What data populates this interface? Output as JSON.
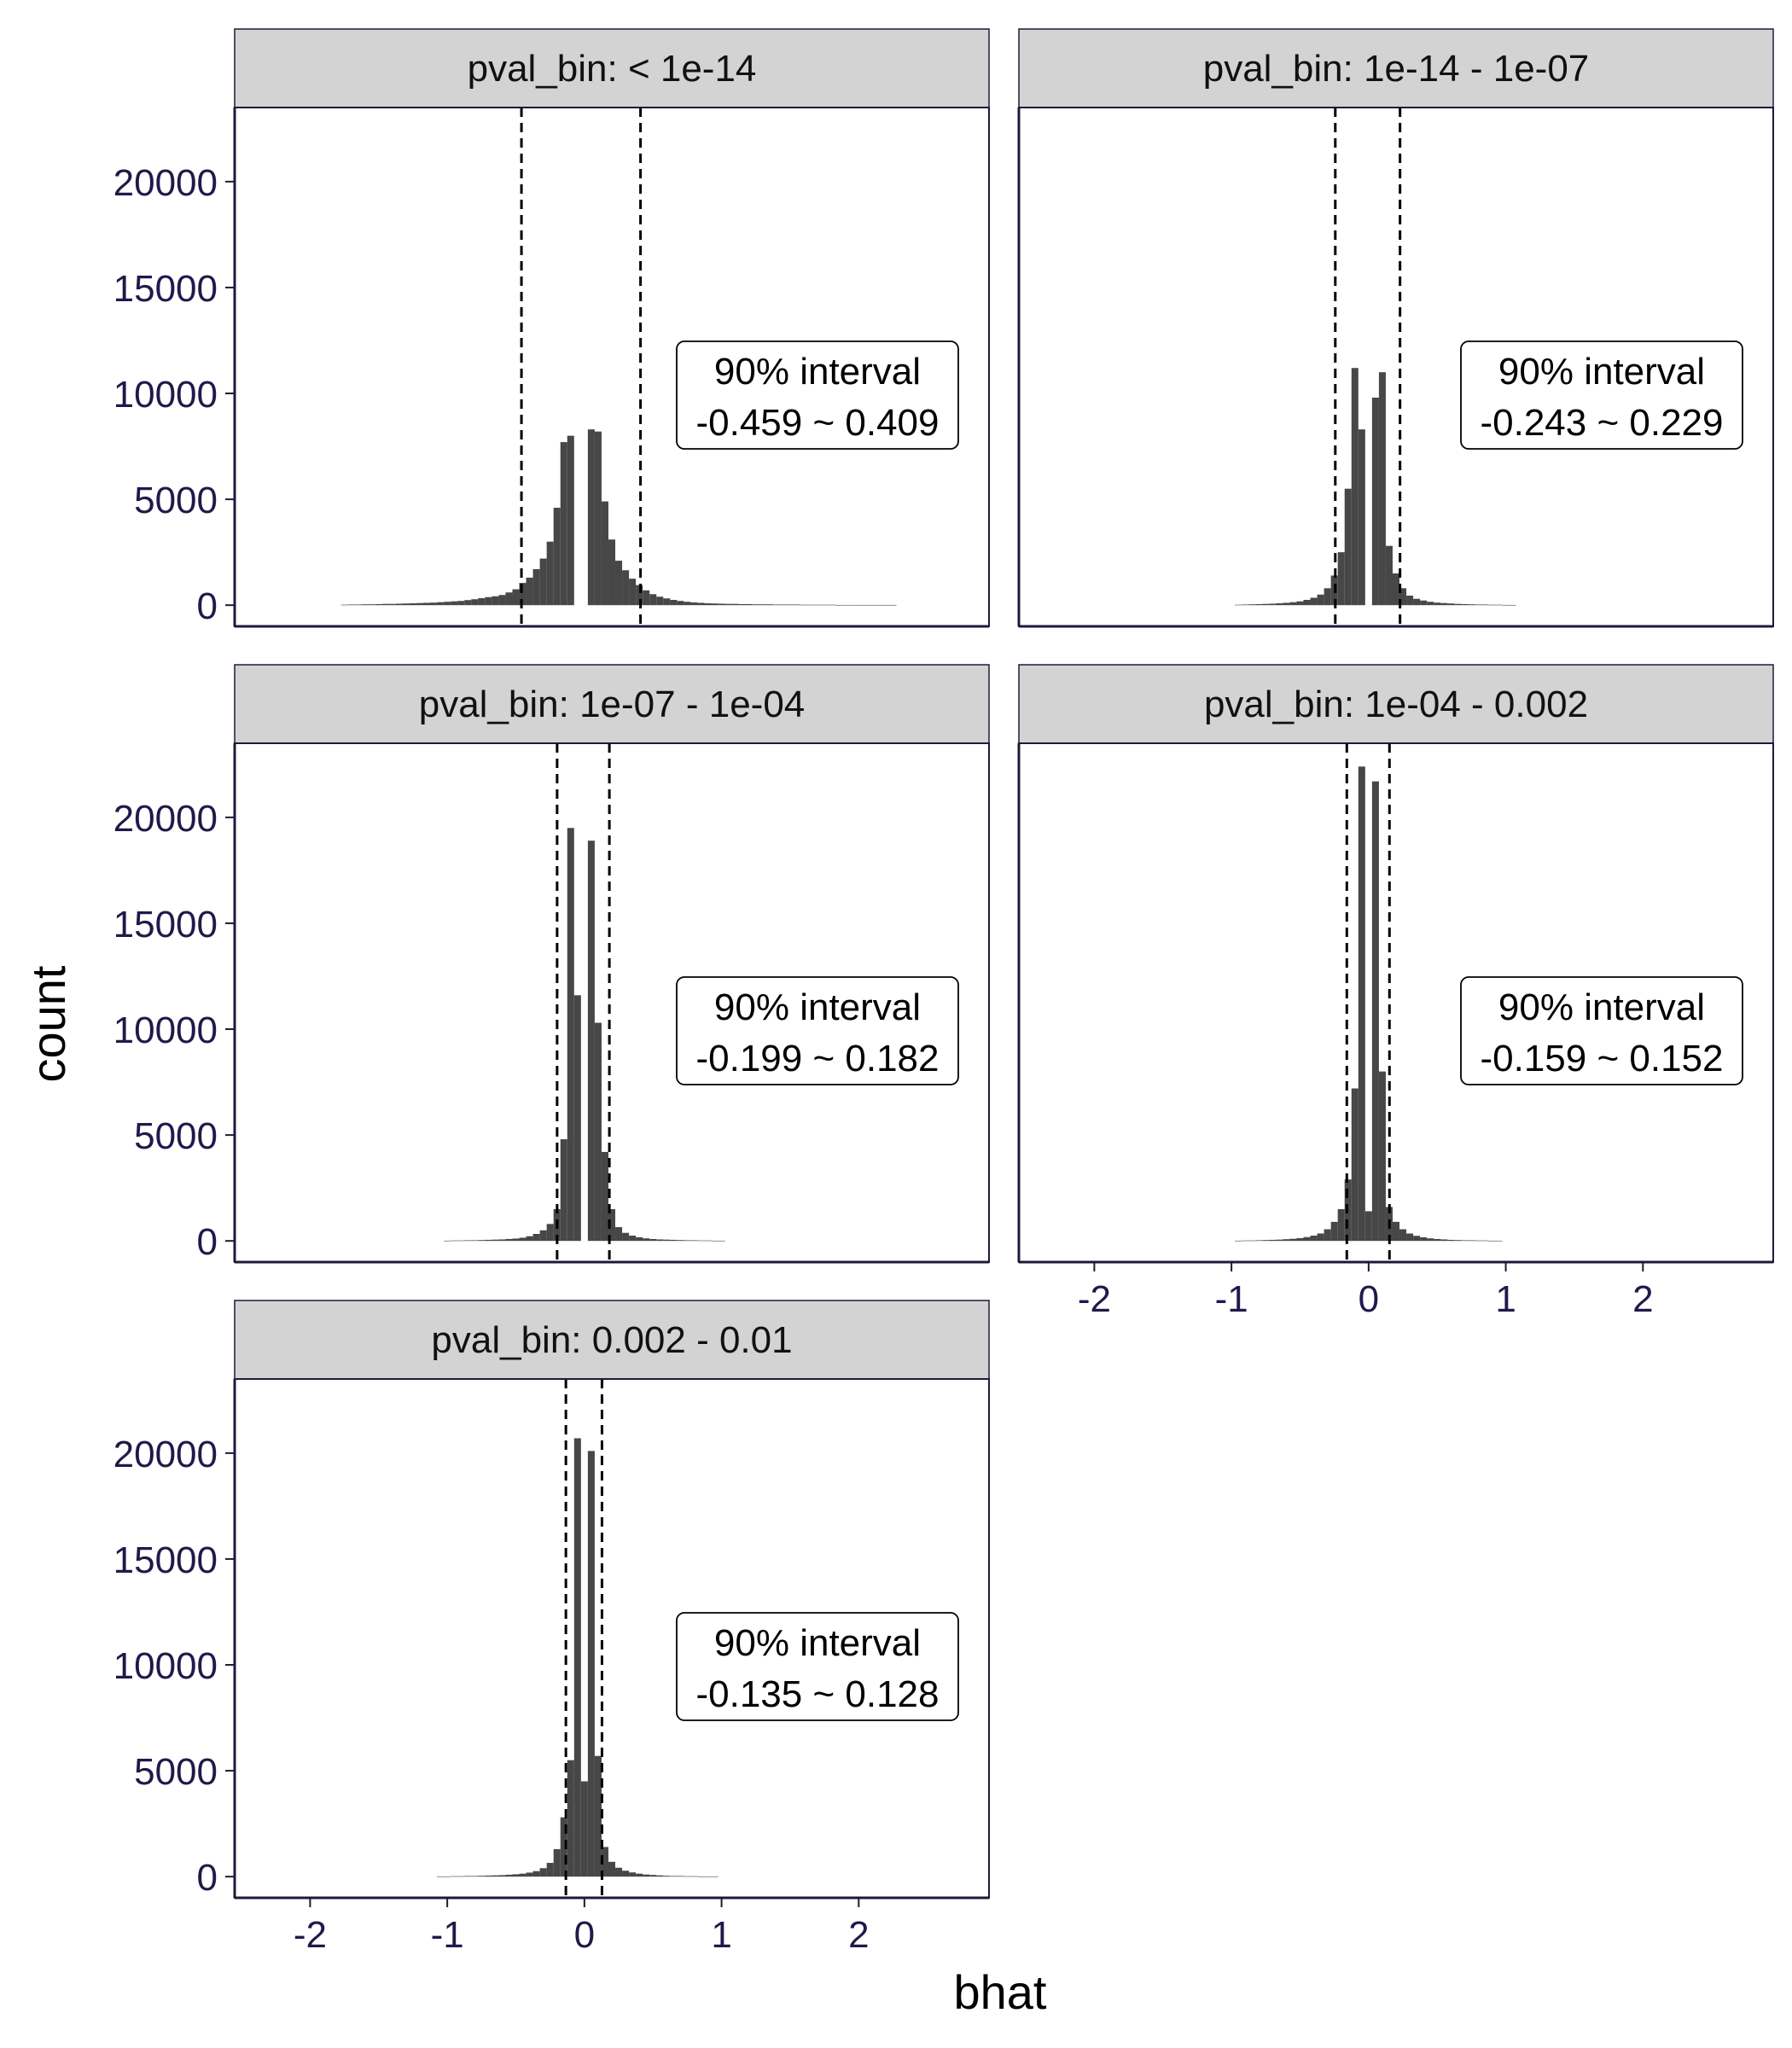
{
  "chart_data": {
    "type": "bar",
    "facet_variable": "pval_bin",
    "xlabel": "bhat",
    "ylabel": "count",
    "xlim": [
      -2.55,
      2.95
    ],
    "ylim": [
      -1000,
      23500
    ],
    "x_ticks": [
      -2,
      -1,
      0,
      1,
      2
    ],
    "y_ticks": [
      0,
      5000,
      10000,
      15000,
      20000
    ],
    "grid": false,
    "bin_width": 0.05,
    "bar_color": "#474747",
    "panels": [
      {
        "label": "pval_bin: < 1e-14",
        "interval_title": "90% interval",
        "interval_text": "-0.459 ~ 0.409",
        "interval": [
          -0.459,
          0.409
        ],
        "bins": [
          {
            "x": -1.75,
            "y": 20
          },
          {
            "x": -1.7,
            "y": 30
          },
          {
            "x": -1.65,
            "y": 30
          },
          {
            "x": -1.6,
            "y": 40
          },
          {
            "x": -1.55,
            "y": 40
          },
          {
            "x": -1.5,
            "y": 50
          },
          {
            "x": -1.45,
            "y": 60
          },
          {
            "x": -1.4,
            "y": 60
          },
          {
            "x": -1.35,
            "y": 70
          },
          {
            "x": -1.3,
            "y": 80
          },
          {
            "x": -1.25,
            "y": 90
          },
          {
            "x": -1.2,
            "y": 100
          },
          {
            "x": -1.15,
            "y": 110
          },
          {
            "x": -1.1,
            "y": 120
          },
          {
            "x": -1.05,
            "y": 140
          },
          {
            "x": -1.0,
            "y": 160
          },
          {
            "x": -0.95,
            "y": 180
          },
          {
            "x": -0.9,
            "y": 200
          },
          {
            "x": -0.85,
            "y": 240
          },
          {
            "x": -0.8,
            "y": 280
          },
          {
            "x": -0.75,
            "y": 330
          },
          {
            "x": -0.7,
            "y": 380
          },
          {
            "x": -0.65,
            "y": 420
          },
          {
            "x": -0.6,
            "y": 480
          },
          {
            "x": -0.55,
            "y": 600
          },
          {
            "x": -0.5,
            "y": 750
          },
          {
            "x": -0.45,
            "y": 1050
          },
          {
            "x": -0.4,
            "y": 1300
          },
          {
            "x": -0.35,
            "y": 1700
          },
          {
            "x": -0.3,
            "y": 2200
          },
          {
            "x": -0.25,
            "y": 3000
          },
          {
            "x": -0.2,
            "y": 4600
          },
          {
            "x": -0.15,
            "y": 7700
          },
          {
            "x": -0.1,
            "y": 8000
          },
          {
            "x": -0.05,
            "y": 0
          },
          {
            "x": 0.0,
            "y": 0
          },
          {
            "x": 0.05,
            "y": 8300
          },
          {
            "x": 0.1,
            "y": 8200
          },
          {
            "x": 0.15,
            "y": 4900
          },
          {
            "x": 0.2,
            "y": 3100
          },
          {
            "x": 0.25,
            "y": 2100
          },
          {
            "x": 0.3,
            "y": 1650
          },
          {
            "x": 0.35,
            "y": 1250
          },
          {
            "x": 0.4,
            "y": 950
          },
          {
            "x": 0.45,
            "y": 700
          },
          {
            "x": 0.5,
            "y": 520
          },
          {
            "x": 0.55,
            "y": 400
          },
          {
            "x": 0.6,
            "y": 320
          },
          {
            "x": 0.65,
            "y": 250
          },
          {
            "x": 0.7,
            "y": 200
          },
          {
            "x": 0.75,
            "y": 160
          },
          {
            "x": 0.8,
            "y": 130
          },
          {
            "x": 0.85,
            "y": 110
          },
          {
            "x": 0.9,
            "y": 90
          },
          {
            "x": 0.95,
            "y": 80
          },
          {
            "x": 1.0,
            "y": 70
          },
          {
            "x": 1.05,
            "y": 60
          },
          {
            "x": 1.1,
            "y": 60
          },
          {
            "x": 1.15,
            "y": 50
          },
          {
            "x": 1.2,
            "y": 50
          },
          {
            "x": 1.25,
            "y": 40
          },
          {
            "x": 1.3,
            "y": 40
          },
          {
            "x": 1.35,
            "y": 40
          },
          {
            "x": 1.4,
            "y": 30
          },
          {
            "x": 1.45,
            "y": 30
          },
          {
            "x": 1.5,
            "y": 30
          },
          {
            "x": 1.55,
            "y": 30
          },
          {
            "x": 1.6,
            "y": 20
          },
          {
            "x": 1.65,
            "y": 20
          },
          {
            "x": 1.7,
            "y": 20
          },
          {
            "x": 1.75,
            "y": 20
          },
          {
            "x": 1.8,
            "y": 20
          },
          {
            "x": 1.85,
            "y": 10
          },
          {
            "x": 1.9,
            "y": 10
          },
          {
            "x": 1.95,
            "y": 10
          },
          {
            "x": 2.0,
            "y": 10
          },
          {
            "x": 2.05,
            "y": 10
          },
          {
            "x": 2.1,
            "y": 10
          },
          {
            "x": 2.15,
            "y": 10
          },
          {
            "x": 2.2,
            "y": 10
          },
          {
            "x": 2.25,
            "y": 10
          }
        ]
      },
      {
        "label": "pval_bin: 1e-14 - 1e-07",
        "interval_title": "90% interval",
        "interval_text": "-0.243 ~ 0.229",
        "interval": [
          -0.243,
          0.229
        ],
        "bins": [
          {
            "x": -0.95,
            "y": 20
          },
          {
            "x": -0.9,
            "y": 30
          },
          {
            "x": -0.85,
            "y": 40
          },
          {
            "x": -0.8,
            "y": 50
          },
          {
            "x": -0.75,
            "y": 60
          },
          {
            "x": -0.7,
            "y": 70
          },
          {
            "x": -0.65,
            "y": 90
          },
          {
            "x": -0.6,
            "y": 110
          },
          {
            "x": -0.55,
            "y": 140
          },
          {
            "x": -0.5,
            "y": 180
          },
          {
            "x": -0.45,
            "y": 250
          },
          {
            "x": -0.4,
            "y": 350
          },
          {
            "x": -0.35,
            "y": 500
          },
          {
            "x": -0.3,
            "y": 800
          },
          {
            "x": -0.25,
            "y": 1400
          },
          {
            "x": -0.2,
            "y": 2500
          },
          {
            "x": -0.15,
            "y": 5500
          },
          {
            "x": -0.1,
            "y": 11200
          },
          {
            "x": -0.05,
            "y": 8300
          },
          {
            "x": 0.0,
            "y": 0
          },
          {
            "x": 0.05,
            "y": 9800
          },
          {
            "x": 0.1,
            "y": 11000
          },
          {
            "x": 0.15,
            "y": 2800
          },
          {
            "x": 0.2,
            "y": 1500
          },
          {
            "x": 0.25,
            "y": 800
          },
          {
            "x": 0.3,
            "y": 450
          },
          {
            "x": 0.35,
            "y": 300
          },
          {
            "x": 0.4,
            "y": 220
          },
          {
            "x": 0.45,
            "y": 160
          },
          {
            "x": 0.5,
            "y": 120
          },
          {
            "x": 0.55,
            "y": 100
          },
          {
            "x": 0.6,
            "y": 80
          },
          {
            "x": 0.65,
            "y": 60
          },
          {
            "x": 0.7,
            "y": 50
          },
          {
            "x": 0.75,
            "y": 40
          },
          {
            "x": 0.8,
            "y": 30
          },
          {
            "x": 0.85,
            "y": 30
          },
          {
            "x": 0.9,
            "y": 20
          },
          {
            "x": 0.95,
            "y": 20
          },
          {
            "x": 1.0,
            "y": 10
          },
          {
            "x": 1.05,
            "y": 10
          }
        ]
      },
      {
        "label": "pval_bin: 1e-07 - 1e-04",
        "interval_title": "90% interval",
        "interval_text": "-0.199 ~ 0.182",
        "interval": [
          -0.199,
          0.182
        ],
        "bins": [
          {
            "x": -1.0,
            "y": 10
          },
          {
            "x": -0.95,
            "y": 20
          },
          {
            "x": -0.9,
            "y": 20
          },
          {
            "x": -0.85,
            "y": 30
          },
          {
            "x": -0.8,
            "y": 30
          },
          {
            "x": -0.75,
            "y": 40
          },
          {
            "x": -0.7,
            "y": 50
          },
          {
            "x": -0.65,
            "y": 60
          },
          {
            "x": -0.6,
            "y": 70
          },
          {
            "x": -0.55,
            "y": 90
          },
          {
            "x": -0.5,
            "y": 110
          },
          {
            "x": -0.45,
            "y": 150
          },
          {
            "x": -0.4,
            "y": 220
          },
          {
            "x": -0.35,
            "y": 330
          },
          {
            "x": -0.3,
            "y": 500
          },
          {
            "x": -0.25,
            "y": 800
          },
          {
            "x": -0.2,
            "y": 1500
          },
          {
            "x": -0.15,
            "y": 4800
          },
          {
            "x": -0.1,
            "y": 19500
          },
          {
            "x": -0.05,
            "y": 11600
          },
          {
            "x": 0.0,
            "y": 0
          },
          {
            "x": 0.05,
            "y": 18900
          },
          {
            "x": 0.1,
            "y": 10300
          },
          {
            "x": 0.15,
            "y": 4200
          },
          {
            "x": 0.2,
            "y": 1500
          },
          {
            "x": 0.25,
            "y": 650
          },
          {
            "x": 0.3,
            "y": 380
          },
          {
            "x": 0.35,
            "y": 250
          },
          {
            "x": 0.4,
            "y": 170
          },
          {
            "x": 0.45,
            "y": 120
          },
          {
            "x": 0.5,
            "y": 90
          },
          {
            "x": 0.55,
            "y": 70
          },
          {
            "x": 0.6,
            "y": 60
          },
          {
            "x": 0.65,
            "y": 50
          },
          {
            "x": 0.7,
            "y": 40
          },
          {
            "x": 0.75,
            "y": 30
          },
          {
            "x": 0.8,
            "y": 30
          },
          {
            "x": 0.85,
            "y": 20
          },
          {
            "x": 0.9,
            "y": 20
          },
          {
            "x": 0.95,
            "y": 10
          },
          {
            "x": 1.0,
            "y": 10
          }
        ]
      },
      {
        "label": "pval_bin: 1e-04 - 0.002",
        "interval_title": "90% interval",
        "interval_text": "-0.159 ~ 0.152",
        "interval": [
          -0.159,
          0.152
        ],
        "bins": [
          {
            "x": -0.95,
            "y": 10
          },
          {
            "x": -0.9,
            "y": 20
          },
          {
            "x": -0.85,
            "y": 20
          },
          {
            "x": -0.8,
            "y": 30
          },
          {
            "x": -0.75,
            "y": 40
          },
          {
            "x": -0.7,
            "y": 50
          },
          {
            "x": -0.65,
            "y": 60
          },
          {
            "x": -0.6,
            "y": 80
          },
          {
            "x": -0.55,
            "y": 100
          },
          {
            "x": -0.5,
            "y": 130
          },
          {
            "x": -0.45,
            "y": 180
          },
          {
            "x": -0.4,
            "y": 250
          },
          {
            "x": -0.35,
            "y": 350
          },
          {
            "x": -0.3,
            "y": 550
          },
          {
            "x": -0.25,
            "y": 900
          },
          {
            "x": -0.2,
            "y": 1500
          },
          {
            "x": -0.15,
            "y": 2900
          },
          {
            "x": -0.1,
            "y": 7200
          },
          {
            "x": -0.05,
            "y": 22400
          },
          {
            "x": 0.0,
            "y": 1400
          },
          {
            "x": 0.05,
            "y": 21700
          },
          {
            "x": 0.1,
            "y": 8000
          },
          {
            "x": 0.15,
            "y": 1600
          },
          {
            "x": 0.2,
            "y": 900
          },
          {
            "x": 0.25,
            "y": 550
          },
          {
            "x": 0.3,
            "y": 350
          },
          {
            "x": 0.35,
            "y": 240
          },
          {
            "x": 0.4,
            "y": 170
          },
          {
            "x": 0.45,
            "y": 120
          },
          {
            "x": 0.5,
            "y": 90
          },
          {
            "x": 0.55,
            "y": 70
          },
          {
            "x": 0.6,
            "y": 50
          },
          {
            "x": 0.65,
            "y": 40
          },
          {
            "x": 0.7,
            "y": 30
          },
          {
            "x": 0.75,
            "y": 30
          },
          {
            "x": 0.8,
            "y": 20
          },
          {
            "x": 0.85,
            "y": 20
          },
          {
            "x": 0.9,
            "y": 10
          },
          {
            "x": 0.95,
            "y": 10
          }
        ]
      },
      {
        "label": "pval_bin: 0.002 - 0.01",
        "interval_title": "90% interval",
        "interval_text": "-0.135 ~ 0.128",
        "interval": [
          -0.135,
          0.128
        ],
        "bins": [
          {
            "x": -1.05,
            "y": 10
          },
          {
            "x": -1.0,
            "y": 10
          },
          {
            "x": -0.95,
            "y": 20
          },
          {
            "x": -0.9,
            "y": 20
          },
          {
            "x": -0.85,
            "y": 30
          },
          {
            "x": -0.8,
            "y": 30
          },
          {
            "x": -0.75,
            "y": 40
          },
          {
            "x": -0.7,
            "y": 50
          },
          {
            "x": -0.65,
            "y": 60
          },
          {
            "x": -0.6,
            "y": 70
          },
          {
            "x": -0.55,
            "y": 90
          },
          {
            "x": -0.5,
            "y": 110
          },
          {
            "x": -0.45,
            "y": 140
          },
          {
            "x": -0.4,
            "y": 190
          },
          {
            "x": -0.35,
            "y": 260
          },
          {
            "x": -0.3,
            "y": 400
          },
          {
            "x": -0.25,
            "y": 650
          },
          {
            "x": -0.2,
            "y": 1300
          },
          {
            "x": -0.15,
            "y": 2800
          },
          {
            "x": -0.1,
            "y": 5500
          },
          {
            "x": -0.05,
            "y": 20700
          },
          {
            "x": 0.0,
            "y": 4500
          },
          {
            "x": 0.05,
            "y": 20100
          },
          {
            "x": 0.1,
            "y": 5700
          },
          {
            "x": 0.15,
            "y": 1400
          },
          {
            "x": 0.2,
            "y": 700
          },
          {
            "x": 0.25,
            "y": 420
          },
          {
            "x": 0.3,
            "y": 280
          },
          {
            "x": 0.35,
            "y": 200
          },
          {
            "x": 0.4,
            "y": 140
          },
          {
            "x": 0.45,
            "y": 100
          },
          {
            "x": 0.5,
            "y": 80
          },
          {
            "x": 0.55,
            "y": 60
          },
          {
            "x": 0.6,
            "y": 40
          },
          {
            "x": 0.65,
            "y": 30
          },
          {
            "x": 0.7,
            "y": 30
          },
          {
            "x": 0.75,
            "y": 20
          },
          {
            "x": 0.8,
            "y": 20
          },
          {
            "x": 0.85,
            "y": 10
          },
          {
            "x": 0.9,
            "y": 10
          },
          {
            "x": 0.95,
            "y": 10
          }
        ]
      }
    ]
  }
}
